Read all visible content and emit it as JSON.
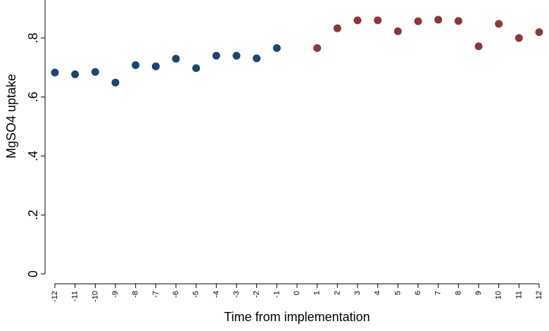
{
  "chart_data": {
    "type": "scatter",
    "xlabel": "Time from implementation",
    "ylabel": "MgSO4 uptake",
    "x_ticks": [
      -12,
      -11,
      -10,
      -9,
      -8,
      -7,
      -6,
      -5,
      -4,
      -3,
      -2,
      -1,
      0,
      1,
      2,
      3,
      4,
      5,
      6,
      7,
      8,
      9,
      10,
      11,
      12
    ],
    "y_ticks": [
      {
        "value": 0,
        "label": "0"
      },
      {
        "value": 0.2,
        "label": ".2"
      },
      {
        "value": 0.4,
        "label": ".4"
      },
      {
        "value": 0.6,
        "label": ".6"
      },
      {
        "value": 0.8,
        "label": ".8"
      }
    ],
    "xlim": [
      -12,
      12
    ],
    "ylim": [
      0,
      0.8
    ],
    "grid": false,
    "legend": "none",
    "series": [
      {
        "color": "#1a476f",
        "x": [
          -12,
          -11,
          -10,
          -9,
          -8,
          -7,
          -6,
          -5,
          -4,
          -3,
          -2,
          -1
        ],
        "y": [
          0.683,
          0.677,
          0.685,
          0.649,
          0.708,
          0.704,
          0.73,
          0.698,
          0.74,
          0.74,
          0.731,
          0.766
        ]
      },
      {
        "color": "#90353b",
        "x": [
          1,
          2,
          3,
          4,
          5,
          6,
          7,
          8,
          9,
          10,
          11,
          12
        ],
        "y": [
          0.766,
          0.833,
          0.86,
          0.86,
          0.823,
          0.857,
          0.862,
          0.858,
          0.772,
          0.848,
          0.8,
          0.82
        ]
      }
    ]
  }
}
